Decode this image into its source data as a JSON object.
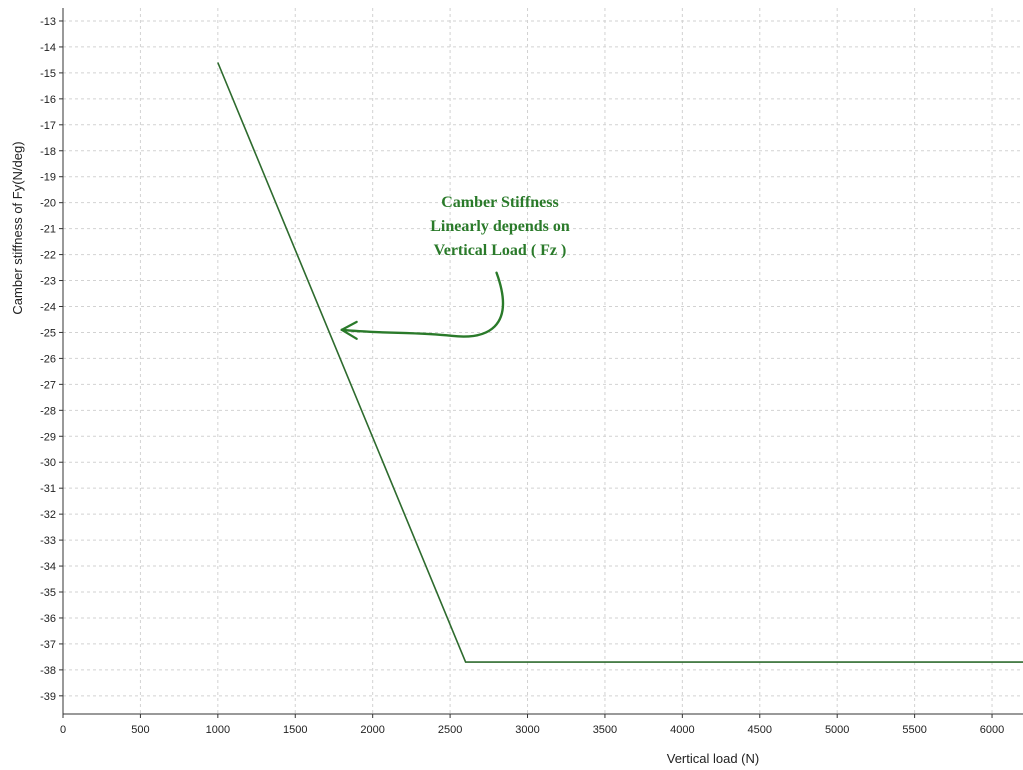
{
  "chart_data": {
    "type": "line",
    "title": "",
    "xlabel": "Vertical load (N)",
    "ylabel": "Camber stiffness of Fy(N/deg)",
    "xlim": [
      0,
      6200
    ],
    "ylim": [
      -39.7,
      -12.5
    ],
    "x_ticks": [
      0,
      500,
      1000,
      1500,
      2000,
      2500,
      3000,
      3500,
      4000,
      4500,
      5000,
      5500,
      6000
    ],
    "y_ticks": [
      -13,
      -14,
      -15,
      -16,
      -17,
      -18,
      -19,
      -20,
      -21,
      -22,
      -23,
      -24,
      -25,
      -26,
      -27,
      -28,
      -29,
      -30,
      -31,
      -32,
      -33,
      -34,
      -35,
      -36,
      -37,
      -38,
      -39
    ],
    "grid": true,
    "legend": "none",
    "series": [
      {
        "color": "#2e6b2e",
        "x": [
          1000,
          2600,
          6200
        ],
        "y": [
          -14.6,
          -37.7,
          -37.7
        ]
      }
    ],
    "annotations": [
      {
        "lines": [
          "Camber Stiffness",
          "Linearly depends on",
          "Vertical Load ( Fz )"
        ],
        "color": "#2a7a2a",
        "arrow_from": [
          2800,
          -22.7
        ],
        "arrow_to": [
          1800,
          -24.9
        ]
      }
    ]
  }
}
